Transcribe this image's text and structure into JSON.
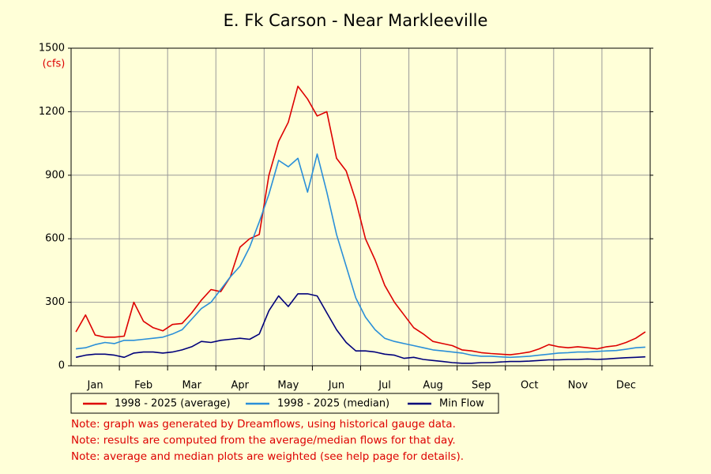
{
  "chart_data": {
    "type": "line",
    "title": "E. Fk Carson - Near Markleeville",
    "y_label": "(cfs)",
    "categories": [
      null,
      null,
      "Jan",
      null,
      null,
      null,
      null,
      "Feb",
      null,
      null,
      null,
      null,
      "Mar",
      null,
      null,
      null,
      null,
      "Apr",
      null,
      null,
      null,
      null,
      "May",
      null,
      null,
      null,
      null,
      "Jun",
      null,
      null,
      null,
      null,
      "Jul",
      null,
      null,
      null,
      null,
      "Aug",
      null,
      null,
      null,
      null,
      "Sep",
      null,
      null,
      null,
      null,
      "Oct",
      null,
      null,
      null,
      null,
      "Nov",
      null,
      null,
      null,
      null,
      "Dec",
      null,
      null
    ],
    "series": [
      {
        "name": "1998 - 2025 (average)",
        "color": "#dd0000",
        "values": [
          160,
          240,
          145,
          135,
          135,
          140,
          300,
          210,
          180,
          165,
          195,
          200,
          250,
          310,
          360,
          350,
          420,
          560,
          600,
          620,
          900,
          1060,
          1150,
          1320,
          1260,
          1180,
          1200,
          980,
          920,
          780,
          600,
          500,
          380,
          300,
          240,
          180,
          150,
          115,
          105,
          95,
          75,
          70,
          62,
          58,
          55,
          52,
          58,
          65,
          80,
          100,
          90,
          85,
          90,
          85,
          80,
          90,
          95,
          110,
          130,
          160
        ]
      },
      {
        "name": "1998 - 2025 (median)",
        "color": "#2a8fd8",
        "values": [
          80,
          85,
          100,
          110,
          105,
          120,
          120,
          125,
          130,
          135,
          150,
          170,
          220,
          270,
          300,
          360,
          420,
          470,
          560,
          680,
          810,
          970,
          940,
          980,
          820,
          1000,
          820,
          620,
          470,
          320,
          230,
          170,
          130,
          115,
          105,
          95,
          85,
          75,
          70,
          65,
          60,
          50,
          45,
          45,
          42,
          40,
          42,
          45,
          50,
          55,
          60,
          62,
          65,
          65,
          68,
          70,
          72,
          78,
          85,
          88
        ]
      },
      {
        "name": "Min Flow",
        "color": "#00007a",
        "values": [
          40,
          50,
          55,
          55,
          50,
          40,
          60,
          65,
          65,
          60,
          65,
          75,
          90,
          115,
          110,
          120,
          125,
          130,
          125,
          150,
          260,
          330,
          280,
          340,
          340,
          330,
          250,
          170,
          110,
          70,
          70,
          65,
          55,
          50,
          35,
          40,
          30,
          25,
          20,
          15,
          12,
          12,
          15,
          15,
          18,
          20,
          20,
          22,
          25,
          28,
          28,
          30,
          30,
          32,
          30,
          32,
          35,
          38,
          40,
          42
        ]
      }
    ],
    "ylim": [
      0,
      1500
    ],
    "yticks": [
      0,
      300,
      600,
      900,
      1200,
      1500
    ],
    "grid": true,
    "notes": [
      "Note: graph was generated by Dreamflows, using historical gauge data.",
      "Note: results are computed from the average/median flows for that day.",
      "Note: average and median plots are weighted (see help page for details)."
    ]
  }
}
